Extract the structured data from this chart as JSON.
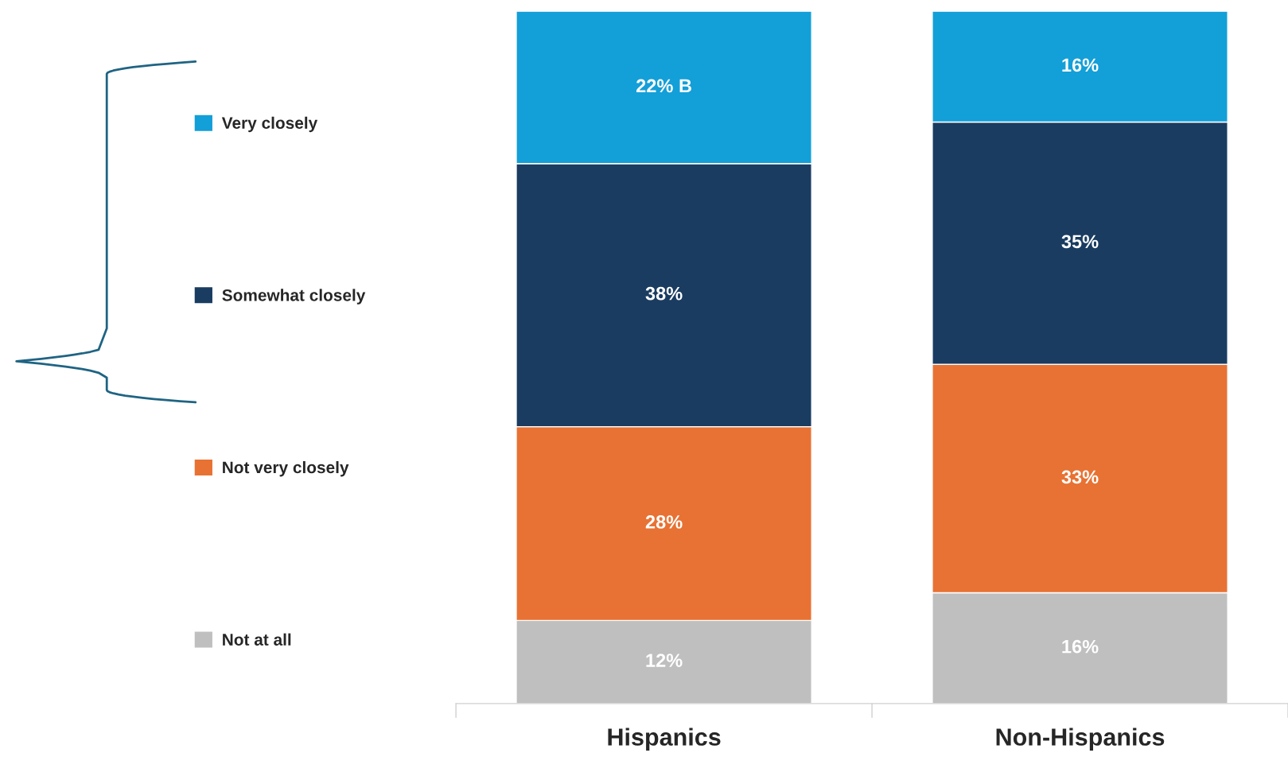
{
  "chart_data": {
    "type": "bar",
    "stacked": true,
    "categories": [
      "Hispanics",
      "Non-Hispanics"
    ],
    "series": [
      {
        "name": "Not at all",
        "color": "#bfbfbf",
        "values": [
          12,
          16
        ],
        "value_labels": [
          "12%",
          "16%"
        ]
      },
      {
        "name": "Not very closely",
        "color": "#e87233",
        "values": [
          28,
          33
        ],
        "value_labels": [
          "28%",
          "33%"
        ]
      },
      {
        "name": "Somewhat closely",
        "color": "#1a3c61",
        "values": [
          38,
          35
        ],
        "value_labels": [
          "38%",
          "35%"
        ]
      },
      {
        "name": "Very closely",
        "color": "#139fd8",
        "values": [
          22,
          16
        ],
        "value_labels": [
          "22% B",
          "16%"
        ]
      }
    ],
    "legend": "left"
  }
}
